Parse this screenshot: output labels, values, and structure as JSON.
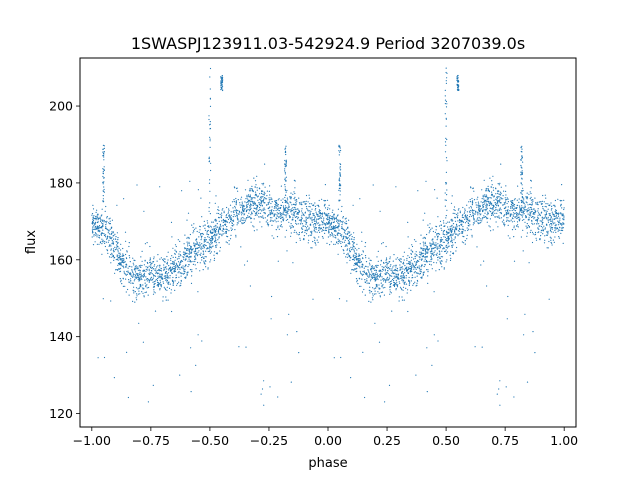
{
  "chart_data": {
    "type": "scatter",
    "title": "1SWASPJ123911.03-542924.9 Period 3207039.0s",
    "xlabel": "phase",
    "ylabel": "flux",
    "xlim": [
      -1.05,
      1.05
    ],
    "ylim": [
      116.5,
      212.5
    ],
    "x_ticks": [
      -1.0,
      -0.75,
      -0.5,
      -0.25,
      0.0,
      0.25,
      0.5,
      0.75,
      1.0
    ],
    "x_tick_labels": [
      "−1.00",
      "−0.75",
      "−0.50",
      "−0.25",
      "0.00",
      "0.25",
      "0.50",
      "0.75",
      "1.00"
    ],
    "y_ticks": [
      120,
      140,
      160,
      180,
      200
    ],
    "y_tick_labels": [
      "120",
      "140",
      "160",
      "180",
      "200"
    ],
    "grid": false,
    "marker_color": "#1f77b4",
    "series": [
      {
        "x": [
          0.0,
          0.02,
          0.04,
          0.06,
          0.08,
          0.1,
          0.12,
          0.14,
          0.16,
          0.18,
          0.2,
          0.22,
          0.24,
          0.26,
          0.28,
          0.3,
          0.32,
          0.34,
          0.36,
          0.38,
          0.4,
          0.42,
          0.44,
          0.46,
          0.48,
          0.5,
          0.52,
          0.54,
          0.56,
          0.58,
          0.6,
          0.62,
          0.64,
          0.66,
          0.68,
          0.7,
          0.72,
          0.74,
          0.76,
          0.78,
          0.8,
          0.82,
          0.84,
          0.86,
          0.88,
          0.9,
          0.92,
          0.94,
          0.96,
          0.98,
          1.0
        ],
        "y": [
          170,
          169,
          168,
          167,
          165,
          162,
          160,
          158,
          157,
          156,
          155,
          155,
          156,
          156,
          155,
          155,
          156,
          157,
          158,
          159,
          161,
          162,
          163,
          164,
          164,
          165,
          167,
          168,
          169,
          170,
          171,
          172,
          173,
          174,
          175,
          175,
          175,
          174,
          173,
          173,
          172,
          173,
          173,
          172,
          171,
          171,
          170,
          170,
          170,
          170,
          170
        ],
        "spread": [
          4,
          4,
          4,
          5,
          5,
          5,
          5,
          5,
          5,
          5,
          5,
          5,
          5,
          5,
          5,
          5,
          5,
          5,
          5,
          5,
          5,
          5,
          5,
          5,
          5,
          5,
          5,
          5,
          5,
          5,
          5,
          5,
          5,
          5,
          5,
          5,
          5,
          5,
          5,
          5,
          5,
          5,
          5,
          5,
          5,
          5,
          5,
          5,
          5,
          5,
          5
        ]
      }
    ],
    "spikes": [
      {
        "x": 0.5,
        "y_range": [
          163,
          210
        ]
      },
      {
        "x": 0.55,
        "y_range": [
          204,
          208
        ]
      },
      {
        "x": 0.82,
        "y_range": [
          176,
          190
        ]
      },
      {
        "x": -0.5,
        "y_range": [
          163,
          210
        ]
      },
      {
        "x": -0.45,
        "y_range": [
          204,
          208
        ]
      },
      {
        "x": -0.18,
        "y_range": [
          176,
          190
        ]
      },
      {
        "x": -0.95,
        "y_range": [
          175,
          190
        ]
      },
      {
        "x": 0.05,
        "y_range": [
          175,
          190
        ]
      }
    ],
    "n_points_per_period": 2200,
    "outlier_fraction": 0.03
  }
}
